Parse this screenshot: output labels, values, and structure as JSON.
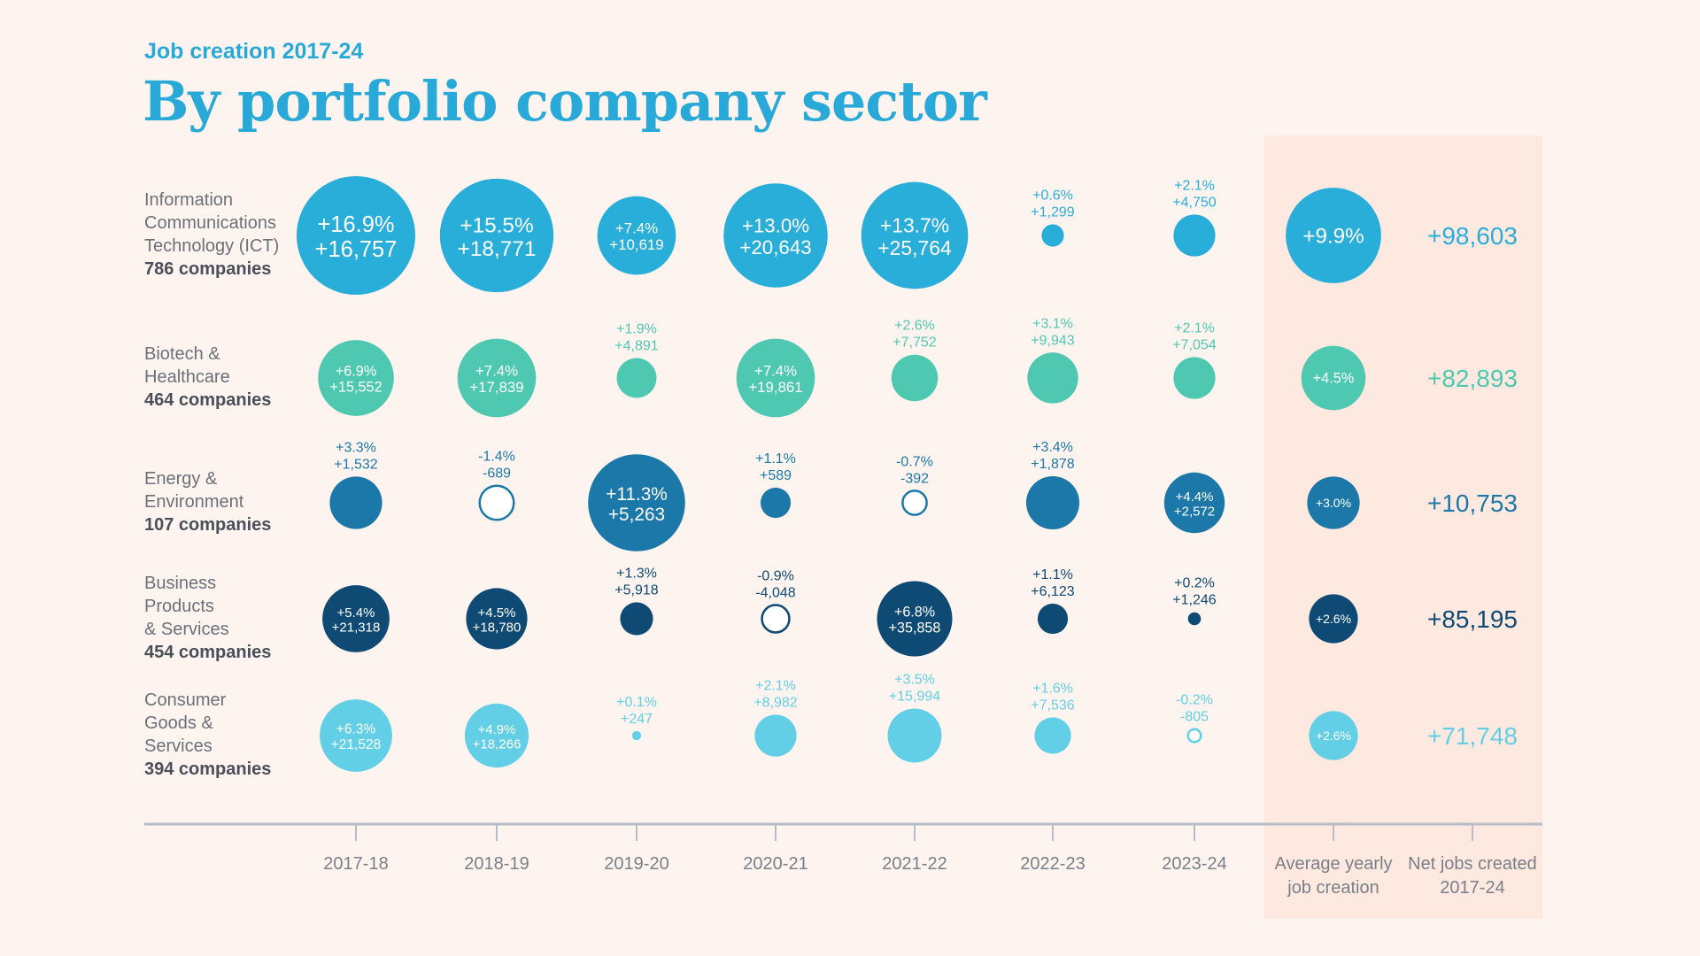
{
  "chart_data": {
    "type": "bubble-matrix",
    "kicker": "Job creation 2017-24",
    "title": "By portfolio company sector",
    "columns": [
      "2017-18",
      "2018-19",
      "2019-20",
      "2020-21",
      "2021-22",
      "2022-23",
      "2023-24"
    ],
    "avg_label": [
      "Average yearly",
      "job creation"
    ],
    "net_label": [
      "Net jobs created",
      "2017-24"
    ],
    "rows": [
      {
        "name": [
          "Information",
          "Communications",
          "Technology (ICT)"
        ],
        "companies": "786 companies",
        "color": "#29aed9",
        "pct": [
          16.9,
          15.5,
          7.4,
          13.0,
          13.7,
          0.6,
          2.1
        ],
        "pct_labels": [
          "+16.9%",
          "+15.5%",
          "+7.4%",
          "+13.0%",
          "+13.7%",
          "+0.6%",
          "+2.1%"
        ],
        "jobs_labels": [
          "+16,757",
          "+18,771",
          "+10,619",
          "+20,643",
          "+25,764",
          "+1,299",
          "+4,750"
        ],
        "avg": 9.9,
        "avg_label": "+9.9%",
        "net": "+98,603"
      },
      {
        "name": [
          "Biotech &",
          "Healthcare"
        ],
        "companies": "464 companies",
        "color": "#4fc8b2",
        "pct": [
          6.9,
          7.4,
          1.9,
          7.4,
          2.6,
          3.1,
          2.1
        ],
        "pct_labels": [
          "+6.9%",
          "+7.4%",
          "+1.9%",
          "+7.4%",
          "+2.6%",
          "+3.1%",
          "+2.1%"
        ],
        "jobs_labels": [
          "+15,552",
          "+17,839",
          "+4,891",
          "+19,861",
          "+7,752",
          "+9,943",
          "+7,054"
        ],
        "avg": 4.5,
        "avg_label": "+4.5%",
        "net": "+82,893"
      },
      {
        "name": [
          "Energy &",
          "Environment"
        ],
        "companies": "107 companies",
        "color": "#1c78a8",
        "pct": [
          3.3,
          -1.4,
          11.3,
          1.1,
          -0.7,
          3.4,
          4.4
        ],
        "pct_labels": [
          "+3.3%",
          "-1.4%",
          "+11.3%",
          "+1.1%",
          "-0.7%",
          "+3.4%",
          "+4.4%"
        ],
        "jobs_labels": [
          "+1,532",
          "-689",
          "+5,263",
          "+589",
          "-392",
          "+1,878",
          "+2,572"
        ],
        "avg": 3.0,
        "avg_label": "+3.0%",
        "net": "+10,753"
      },
      {
        "name": [
          "Business",
          "Products",
          "& Services"
        ],
        "companies": "454 companies",
        "color": "#0e4a74",
        "pct": [
          5.4,
          4.5,
          1.3,
          -0.9,
          6.8,
          1.1,
          0.2
        ],
        "pct_labels": [
          "+5.4%",
          "+4.5%",
          "+1.3%",
          "-0.9%",
          "+6.8%",
          "+1.1%",
          "+0.2%"
        ],
        "jobs_labels": [
          "+21,318",
          "+18,780",
          "+5,918",
          "-4,048",
          "+35,858",
          "+6,123",
          "+1,246"
        ],
        "avg": 2.6,
        "avg_label": "+2.6%",
        "net": "+85,195"
      },
      {
        "name": [
          "Consumer",
          "Goods &",
          "Services"
        ],
        "companies": "394 companies",
        "color": "#62cfe6",
        "pct": [
          6.3,
          4.9,
          0.1,
          2.1,
          3.5,
          1.6,
          -0.2
        ],
        "pct_labels": [
          "+6.3%",
          "+4.9%",
          "+0.1%",
          "+2.1%",
          "+3.5%",
          "+1.6%",
          "-0.2%"
        ],
        "jobs_labels": [
          "+21,528",
          "+18,266",
          "+247",
          "+8,982",
          "+15,994",
          "+7,536",
          "-805"
        ],
        "avg": 2.6,
        "avg_label": "+2.6%",
        "net": "+71,748"
      }
    ],
    "encoding": "circle area proportional to yearly % change; hollow circle = negative",
    "highlight_color": "#fde9df",
    "axis_color": "#b8bcc6"
  }
}
